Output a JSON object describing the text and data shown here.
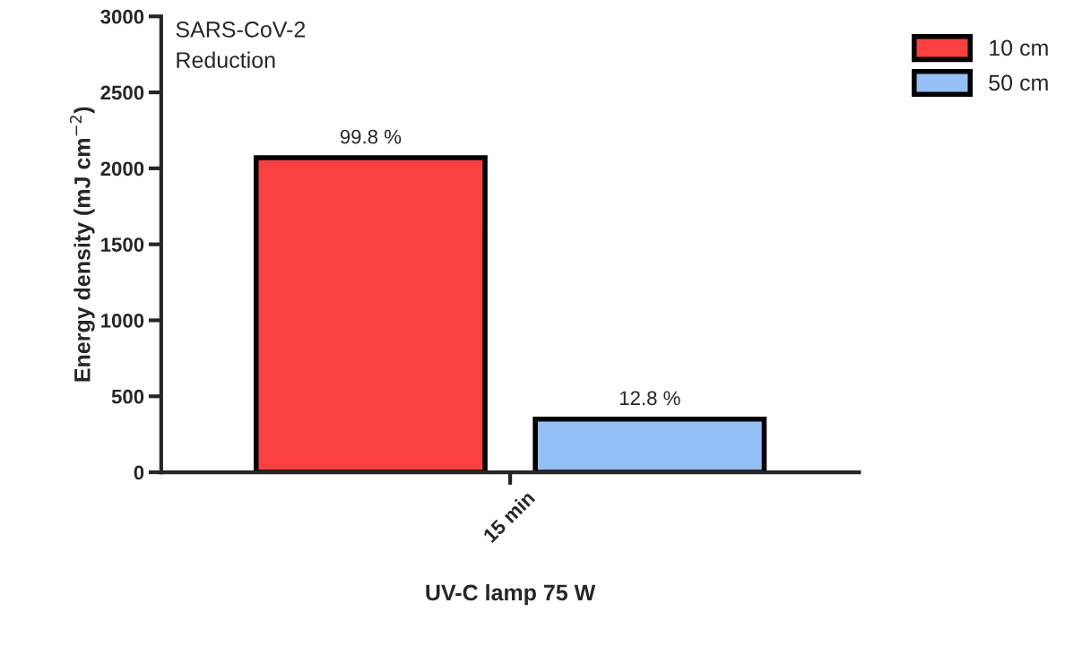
{
  "chart_data": {
    "type": "bar",
    "xlabel": "UV-C lamp 75 W",
    "ylabel": "Energy density (mJ cm$^{−2}$)",
    "categories": [
      "15 min"
    ],
    "series": [
      {
        "name": "10 cm",
        "color": "#f94141",
        "values": [
          2070
        ]
      },
      {
        "name": "50 cm",
        "color": "#94bff7",
        "values": [
          350
        ]
      }
    ],
    "ylim": [
      0,
      3000
    ],
    "yticks": [
      0,
      500,
      1000,
      1500,
      2000,
      2500,
      3000
    ],
    "annotations": [
      "SARS-CoV-2\nReduction",
      "99.8 %",
      "12.8 %"
    ],
    "legend": "top right",
    "grid": false
  }
}
